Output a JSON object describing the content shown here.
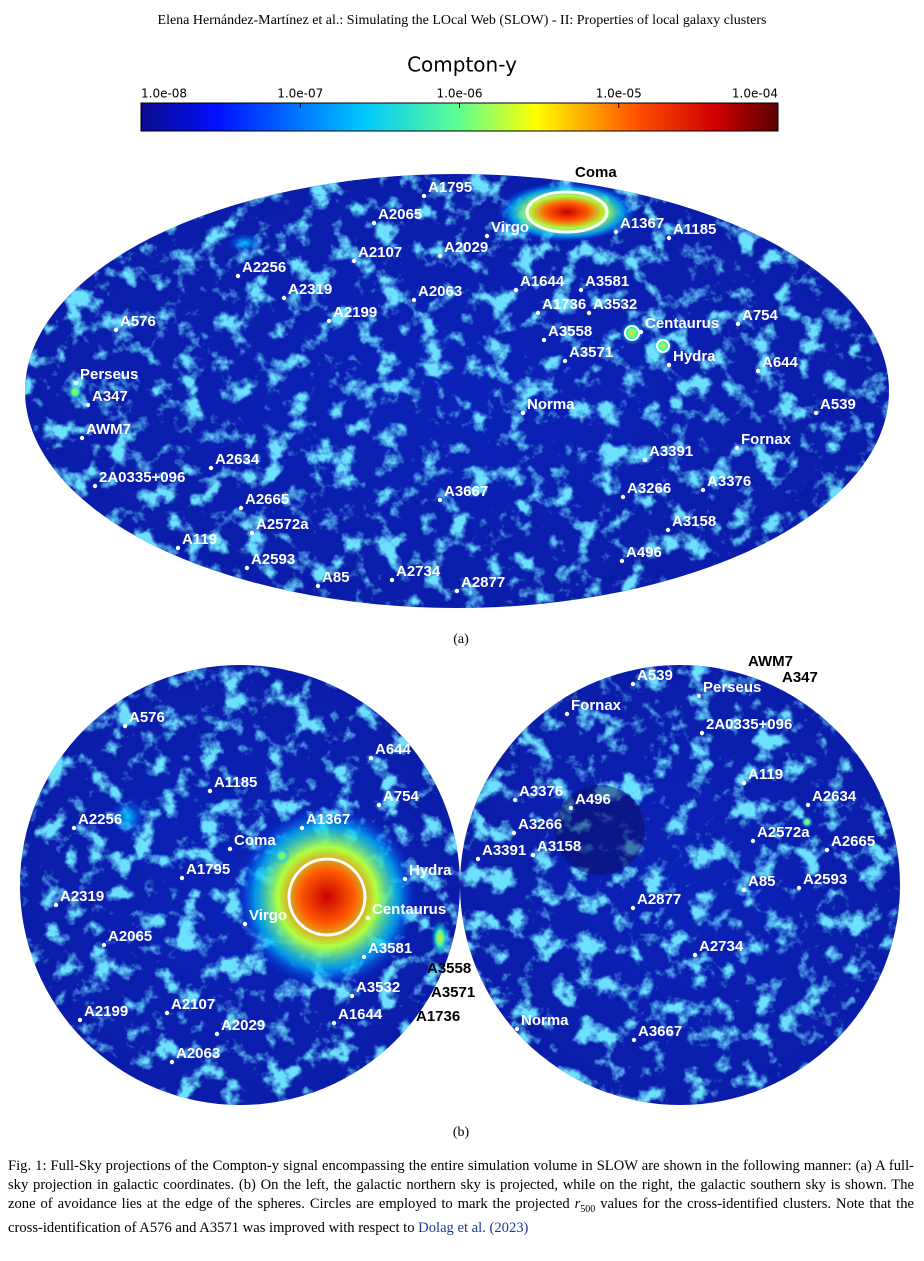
{
  "header": {
    "running_title": "Elena Hernández-Martínez et al.: Simulating the LOcal Web (SLOW) - II: Properties of local galaxy clusters"
  },
  "figure": {
    "colorbar": {
      "title": "Compton-y",
      "tick_labels": [
        "1.0e-08",
        "1.0e-07",
        "1.0e-06",
        "1.0e-05",
        "1.0e-04"
      ]
    },
    "panel_a": {
      "label": "(a)",
      "clusters": [
        "Coma",
        "A1795",
        "A2065",
        "Virgo",
        "A1367",
        "A1185",
        "A2107",
        "A2029",
        "A2256",
        "A1644",
        "A3581",
        "A2319",
        "A2063",
        "A1736",
        "A3532",
        "A2199",
        "A576",
        "Centaurus",
        "A754",
        "A3558",
        "A3571",
        "Hydra",
        "A644",
        "Perseus",
        "A347",
        "Norma",
        "A539",
        "AWM7",
        "Fornax",
        "A3391",
        "A2634",
        "2A0335+096",
        "A3376",
        "A3266",
        "A3667",
        "A2665",
        "A2572a",
        "A3158",
        "A119",
        "A496",
        "A2593",
        "A2734",
        "A85",
        "A2877"
      ]
    },
    "panel_b": {
      "label": "(b)",
      "north_clusters": [
        "A576",
        "A644",
        "A1185",
        "A754",
        "A1367",
        "A2256",
        "Coma",
        "Hydra",
        "A1795",
        "A2319",
        "Virgo",
        "Centaurus",
        "A2065",
        "A3581",
        "A3558",
        "A3532",
        "A3571",
        "A1644",
        "A1736",
        "A2199",
        "A2107",
        "A2029",
        "A2063"
      ],
      "south_clusters": [
        "A539",
        "AWM7",
        "A347",
        "Perseus",
        "Fornax",
        "2A0335+096",
        "A119",
        "A3376",
        "A496",
        "A2634",
        "A3266",
        "A2572a",
        "A2665",
        "A3391",
        "A3158",
        "A85",
        "A2593",
        "A2877",
        "A2734",
        "Norma",
        "A3667"
      ]
    }
  },
  "caption": {
    "text_before": "Fig. 1: Full-Sky projections of the Compton-y signal encompassing the entire simulation volume in SLOW are shown in the following manner: (a) A full-sky projection in galactic coordinates. (b) On the left, the galactic northern sky is projected, while on the right, the galactic southern sky is shown. The zone of avoidance lies at the edge of the spheres. Circles are employed to mark the projected",
    "r_symbol": "r",
    "r_subscript": "500",
    "text_after": "values for the cross-identified clusters. Note that the cross-identification of A576 and A3571 was improved with respect to",
    "citation": "Dolag et al. (2023)"
  }
}
